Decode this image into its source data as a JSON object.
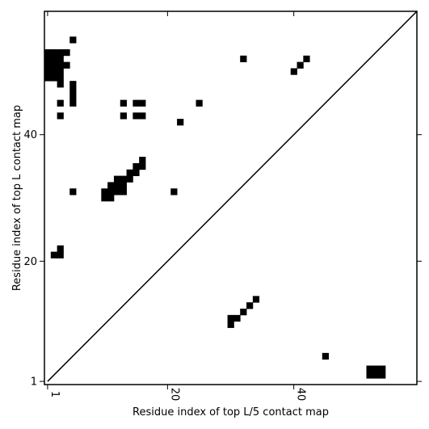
{
  "chart_data": {
    "type": "heatmap",
    "xlabel": "Residue index of top L/5 contact map",
    "ylabel": "Residue index of top L contact map",
    "xlim": [
      0.5,
      59.5
    ],
    "ylim": [
      0.5,
      59.5
    ],
    "x_ticks": [
      {
        "value": 1,
        "label": "1"
      },
      {
        "value": 20,
        "label": "20"
      },
      {
        "value": 40,
        "label": "40"
      }
    ],
    "y_ticks": [
      {
        "value": 1,
        "label": "1"
      },
      {
        "value": 20,
        "label": "20"
      },
      {
        "value": 40,
        "label": "40"
      }
    ],
    "diagonal": {
      "from": [
        1,
        1
      ],
      "to": [
        59,
        59
      ]
    },
    "colors": {
      "cell": "#000000",
      "background": "#ffffff",
      "frame": "#000000"
    },
    "upper_triangle_contacts": [
      [
        5,
        55
      ],
      [
        1,
        53
      ],
      [
        2,
        53
      ],
      [
        3,
        53
      ],
      [
        4,
        53
      ],
      [
        1,
        52
      ],
      [
        2,
        52
      ],
      [
        3,
        52
      ],
      [
        1,
        51
      ],
      [
        2,
        51
      ],
      [
        3,
        51
      ],
      [
        4,
        51
      ],
      [
        1,
        50
      ],
      [
        2,
        50
      ],
      [
        3,
        50
      ],
      [
        1,
        49
      ],
      [
        2,
        49
      ],
      [
        3,
        49
      ],
      [
        3,
        48
      ],
      [
        5,
        48
      ],
      [
        5,
        47
      ],
      [
        5,
        46
      ],
      [
        3,
        45
      ],
      [
        5,
        45
      ],
      [
        13,
        45
      ],
      [
        15,
        45
      ],
      [
        16,
        45
      ],
      [
        25,
        45
      ],
      [
        3,
        43
      ],
      [
        13,
        43
      ],
      [
        15,
        43
      ],
      [
        16,
        43
      ],
      [
        22,
        42
      ],
      [
        16,
        36
      ],
      [
        15,
        35
      ],
      [
        16,
        35
      ],
      [
        14,
        34
      ],
      [
        15,
        34
      ],
      [
        12,
        33
      ],
      [
        13,
        33
      ],
      [
        14,
        33
      ],
      [
        11,
        32
      ],
      [
        12,
        32
      ],
      [
        13,
        32
      ],
      [
        10,
        31
      ],
      [
        11,
        31
      ],
      [
        12,
        31
      ],
      [
        13,
        31
      ],
      [
        5,
        31
      ],
      [
        21,
        31
      ],
      [
        10,
        30
      ],
      [
        11,
        30
      ],
      [
        3,
        22
      ],
      [
        2,
        21
      ],
      [
        3,
        21
      ],
      [
        32,
        52
      ],
      [
        41,
        51
      ],
      [
        42,
        52
      ],
      [
        40,
        50
      ]
    ],
    "lower_triangle_contacts": [
      [
        34,
        14
      ],
      [
        33,
        13
      ],
      [
        32,
        12
      ],
      [
        30,
        11
      ],
      [
        31,
        11
      ],
      [
        30,
        10
      ],
      [
        45,
        5
      ],
      [
        52,
        3
      ],
      [
        53,
        3
      ],
      [
        54,
        3
      ],
      [
        52,
        2
      ],
      [
        53,
        2
      ],
      [
        54,
        2
      ]
    ]
  }
}
